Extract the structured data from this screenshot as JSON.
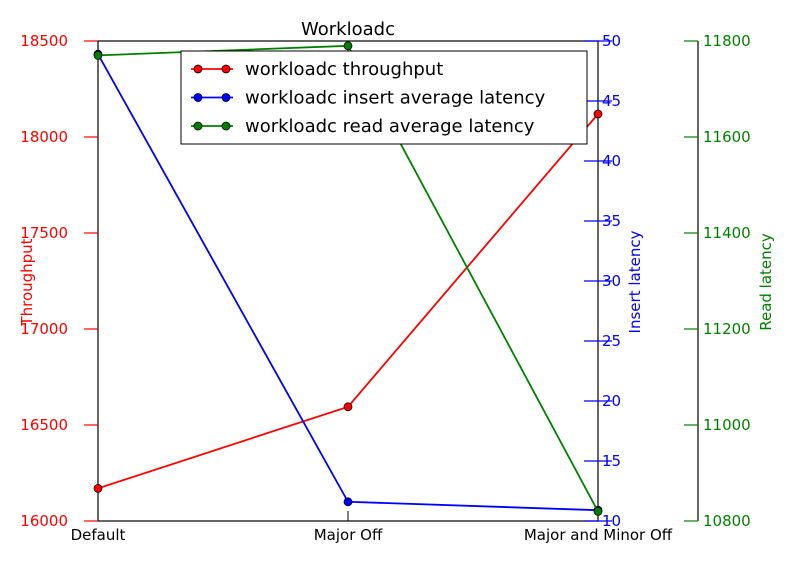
{
  "chart_data": {
    "type": "line",
    "title": "Workloadc",
    "categories": [
      "Default",
      "Major Off",
      "Major and Minor Off"
    ],
    "axes": {
      "left": {
        "label": "Throughput",
        "color": "#ff0000",
        "range": [
          16000,
          18500
        ],
        "ticks": [
          "16000",
          "16500",
          "17000",
          "17500",
          "18000",
          "18500"
        ]
      },
      "right1": {
        "label": "Insert latency",
        "color": "#0000ff",
        "range": [
          10,
          50
        ],
        "ticks": [
          "10",
          "15",
          "20",
          "25",
          "30",
          "35",
          "40",
          "45",
          "50"
        ]
      },
      "right2": {
        "label": "Read latency",
        "color": "#008000",
        "range": [
          10800,
          11800
        ],
        "ticks": [
          "10800",
          "11000",
          "11200",
          "11400",
          "11600",
          "11800"
        ]
      }
    },
    "series": [
      {
        "name": "workloadc throughput",
        "axis": "left",
        "color": "#ff0000",
        "values": [
          16170,
          16595,
          18120
        ]
      },
      {
        "name": "workloadc insert average latency",
        "axis": "right1",
        "color": "#0000ff",
        "values": [
          48.9,
          11.6,
          10.9
        ]
      },
      {
        "name": "workloadc read average latency",
        "axis": "right2",
        "color": "#008000",
        "values": [
          11770,
          11790,
          10820
        ]
      }
    ],
    "legend": "top-center",
    "grid": false
  }
}
